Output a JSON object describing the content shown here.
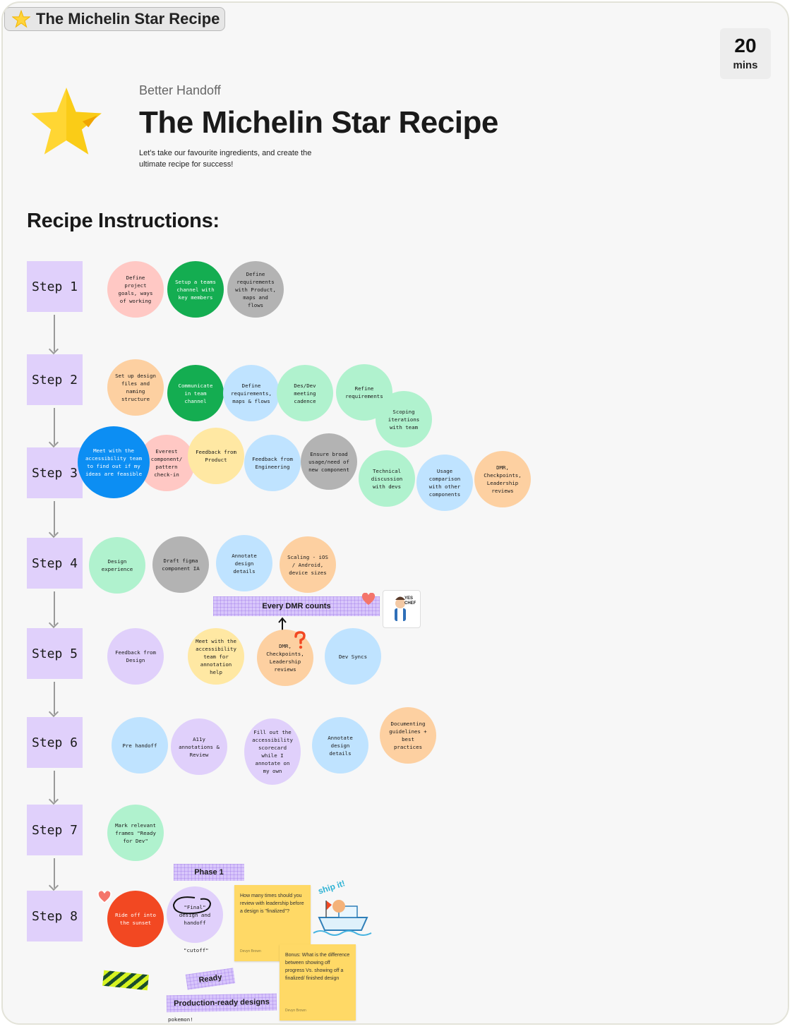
{
  "tab": {
    "label": "The Michelin Star Recipe",
    "icon": "star-icon"
  },
  "timer": {
    "value": "20",
    "unit": "mins"
  },
  "header": {
    "subtitle": "Better Handoff",
    "title": "The Michelin Star Recipe",
    "description": "Let’s take our favourite ingredients, and create the ultimate recipe for success!"
  },
  "section_title": "Recipe Instructions:",
  "steps": [
    "Step 1",
    "Step 2",
    "Step 3",
    "Step 4",
    "Step 5",
    "Step 6",
    "Step 7",
    "Step 8"
  ],
  "step1": [
    "Define project goals, ways of working",
    "Setup a teams channel with key members",
    "Define requirements with Product, maps and flows"
  ],
  "step2": [
    "Set up design files and naming structure",
    "Communicate in team channel",
    "Define requirements, maps & flows",
    "Des/Dev meeting cadence",
    "Refine requirements",
    "Scoping iterations with team"
  ],
  "step3": [
    "Meet with the accessibility team to find out if my ideas are feasible",
    "Everest component/ pattern check-in",
    "Feedback from Product",
    "Feedback from Engineering",
    "Ensure broad usage/need of new component",
    "Technical discussion with devs",
    "Usage comparison with other components",
    "DMR, Checkpoints, Leadership reviews"
  ],
  "step4": [
    "Design experience",
    "Draft figma component IA",
    "Annotate design details",
    "Scaling - iOS / Android, device sizes"
  ],
  "step5": [
    "Feedback from Design",
    "Meet with the accessibility team for annotation help",
    "DMR, Checkpoints, Leadership reviews",
    "Dev Syncs"
  ],
  "step6": [
    "Pre handoff",
    "A11y annotations & Review",
    "Fill out the accessibility scorecard while I annotate on my own",
    "Annotate design details",
    "Documenting guidelines + best practices"
  ],
  "step7": [
    "Mark relevant frames \"Ready for Dev\""
  ],
  "step8": {
    "ride": "Ride off into the sunset",
    "final": "\"Final\" design and handoff",
    "cutoff": "\"cutoff\"",
    "phase": "Phase 1",
    "ready": "Ready",
    "production": "Production-ready designs",
    "pokemon": "pokemon!"
  },
  "tape_dmr": "Every DMR counts",
  "sticker_yes_chef": "YES CHEF",
  "sticker_ship_it": "ship it!",
  "sticky_notes": [
    {
      "text": "How many times should you review with leadership before a design is \"finalized\"?",
      "author": "Devyn Brown"
    },
    {
      "text": "Bonus: What is the difference between showing off progress Vs. showing off a finalized/ finished design",
      "author": "Devyn Brown"
    }
  ],
  "colors": {
    "step_bg": "#e0d0fb",
    "pink": "#ffc8c4",
    "green": "#14ad51",
    "gray": "#b3b3b3",
    "orange": "#fdd0a1",
    "light_blue": "#bfe3ff",
    "mint": "#b0f2ce",
    "yellow": "#ffe8a3",
    "lavender": "#e0d0fb",
    "blue": "#0c8ef3",
    "red": "#f24822",
    "sticky": "#ffd966"
  }
}
